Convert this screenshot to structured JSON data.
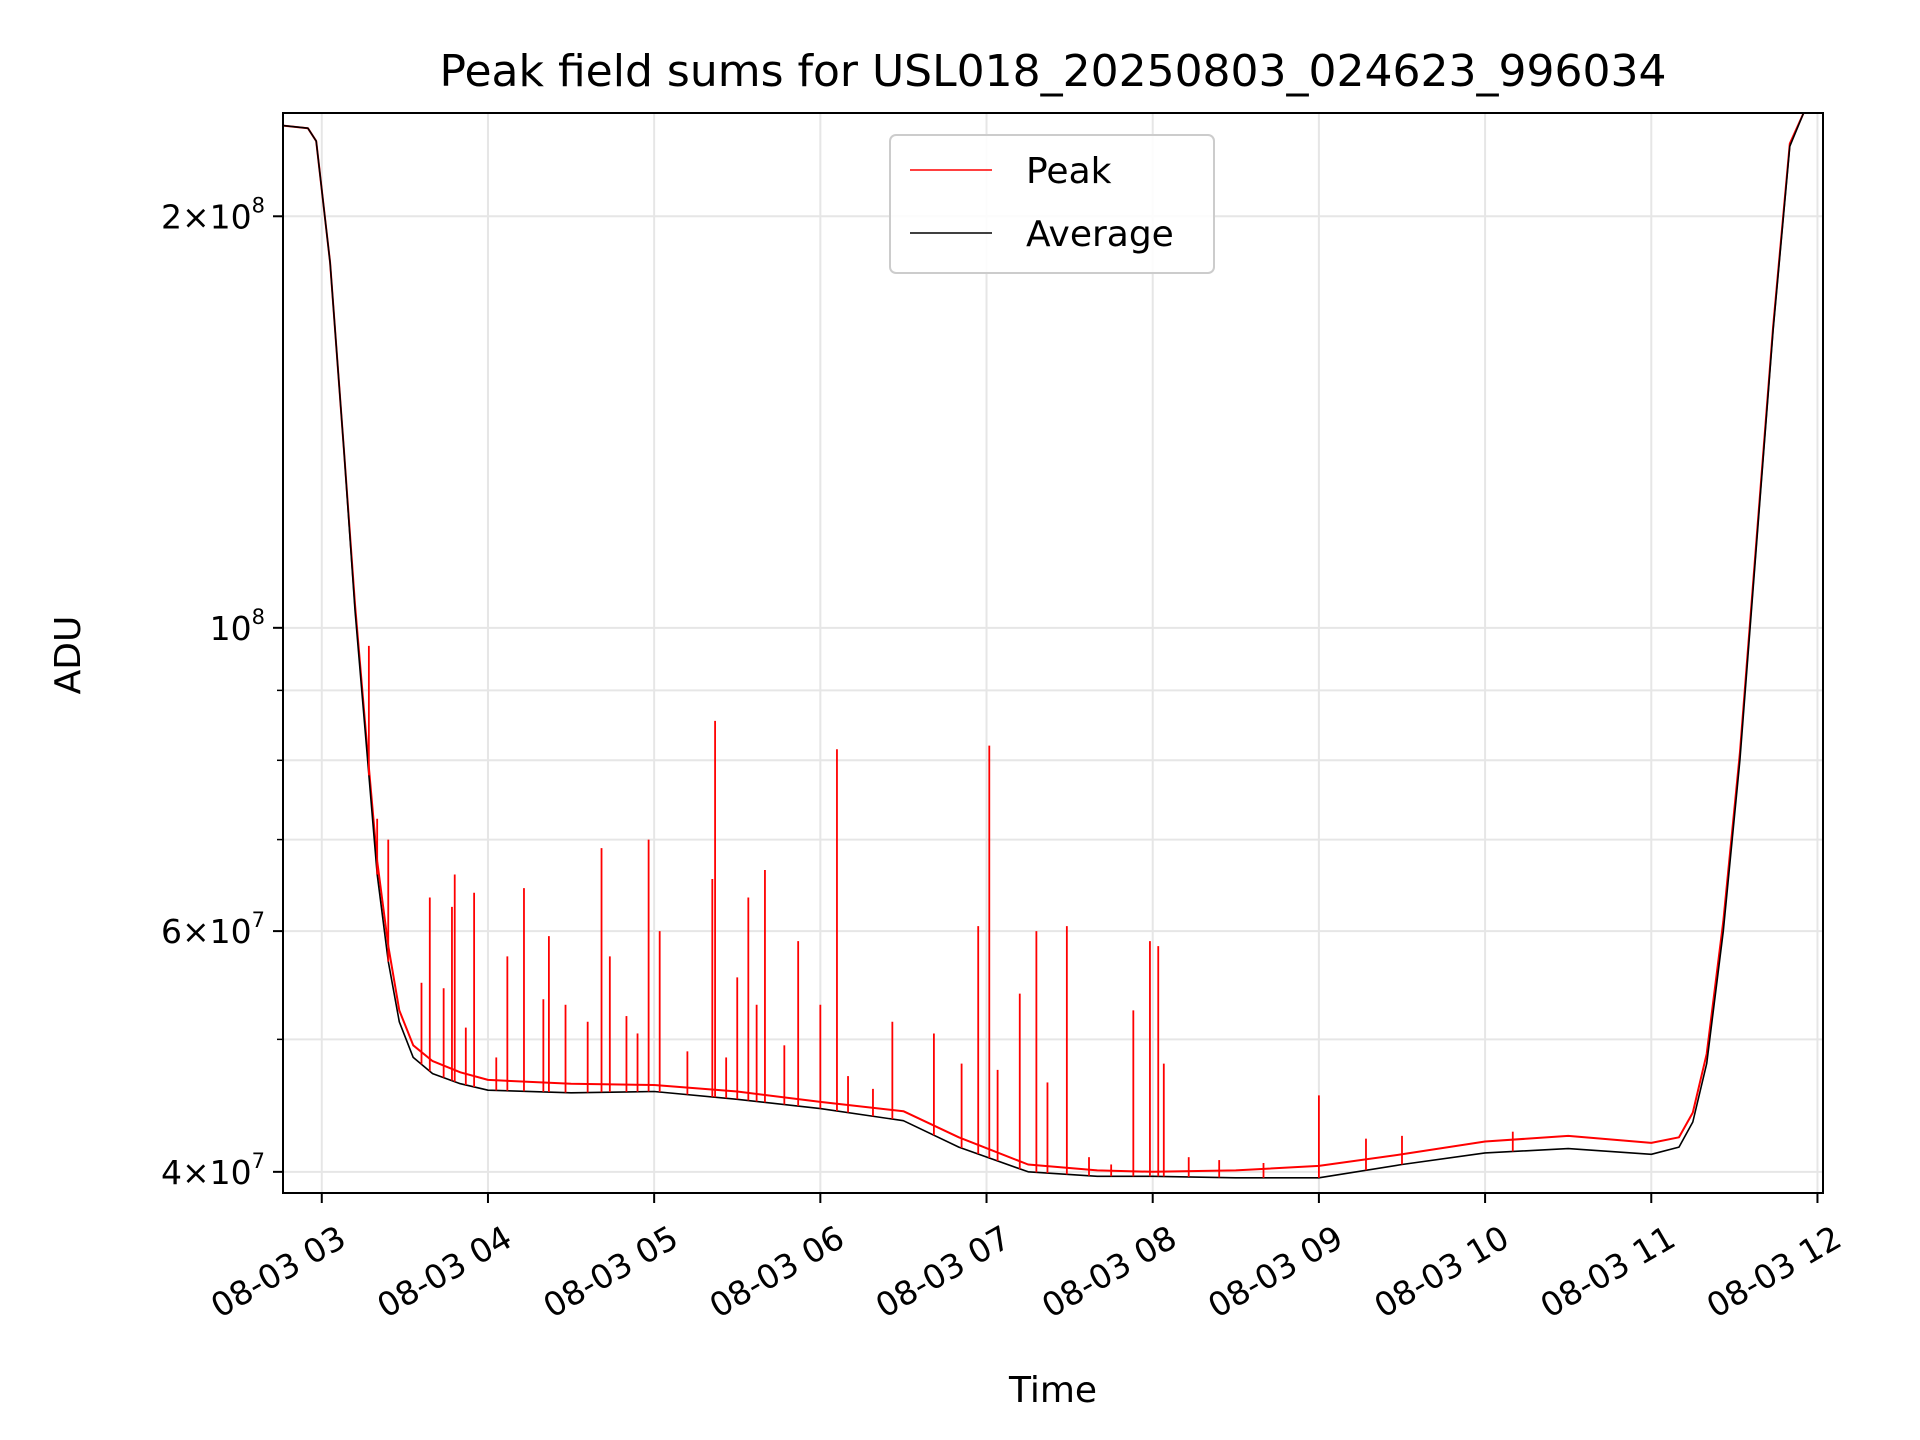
{
  "chart_data": {
    "type": "line",
    "title": "Peak field sums for USL018_20250803_024623_996034",
    "xlabel": "Time",
    "ylabel": "ADU",
    "y_scale": "log",
    "ylim": [
      38600000,
      238000000
    ],
    "xlim": [
      "2025-08-03 02:46",
      "2025-08-03 12:02"
    ],
    "grid": true,
    "legend_position": "top-center",
    "colors": {
      "Peak": "#ff0000",
      "Average": "#000000"
    },
    "x_ticks": [
      {
        "time": "2025-08-03 03:00",
        "label": "08-03 03"
      },
      {
        "time": "2025-08-03 04:00",
        "label": "08-03 04"
      },
      {
        "time": "2025-08-03 05:00",
        "label": "08-03 05"
      },
      {
        "time": "2025-08-03 06:00",
        "label": "08-03 06"
      },
      {
        "time": "2025-08-03 07:00",
        "label": "08-03 07"
      },
      {
        "time": "2025-08-03 08:00",
        "label": "08-03 08"
      },
      {
        "time": "2025-08-03 09:00",
        "label": "08-03 09"
      },
      {
        "time": "2025-08-03 10:00",
        "label": "08-03 10"
      },
      {
        "time": "2025-08-03 11:00",
        "label": "08-03 11"
      },
      {
        "time": "2025-08-03 12:00",
        "label": "08-03 12"
      }
    ],
    "y_ticks": [
      {
        "value": 40000000,
        "mantissa": "4",
        "exp": "7"
      },
      {
        "value": 60000000,
        "mantissa": "6",
        "exp": "7"
      },
      {
        "value": 100000000,
        "mantissa": "",
        "exp": "8"
      },
      {
        "value": 200000000,
        "mantissa": "2",
        "exp": "8"
      }
    ],
    "y_minor_ticks": [
      50000000,
      70000000,
      80000000,
      90000000
    ],
    "series": [
      {
        "name": "Average",
        "points": [
          [
            "2025-08-03 02:46",
            233000000
          ],
          [
            "2025-08-03 02:55",
            232000000
          ],
          [
            "2025-08-03 02:58",
            227000000
          ],
          [
            "2025-08-03 03:03",
            185000000
          ],
          [
            "2025-08-03 03:08",
            135000000
          ],
          [
            "2025-08-03 03:12",
            103000000
          ],
          [
            "2025-08-03 03:17",
            78000000
          ],
          [
            "2025-08-03 03:20",
            66000000
          ],
          [
            "2025-08-03 03:24",
            57000000
          ],
          [
            "2025-08-03 03:28",
            51500000
          ],
          [
            "2025-08-03 03:33",
            48500000
          ],
          [
            "2025-08-03 03:40",
            47200000
          ],
          [
            "2025-08-03 03:50",
            46400000
          ],
          [
            "2025-08-03 04:00",
            45900000
          ],
          [
            "2025-08-03 04:30",
            45700000
          ],
          [
            "2025-08-03 05:00",
            45800000
          ],
          [
            "2025-08-03 05:30",
            45200000
          ],
          [
            "2025-08-03 06:00",
            44500000
          ],
          [
            "2025-08-03 06:30",
            43600000
          ],
          [
            "2025-08-03 06:50",
            41700000
          ],
          [
            "2025-08-03 07:15",
            40000000
          ],
          [
            "2025-08-03 07:40",
            39700000
          ],
          [
            "2025-08-03 08:00",
            39700000
          ],
          [
            "2025-08-03 08:30",
            39600000
          ],
          [
            "2025-08-03 09:00",
            39600000
          ],
          [
            "2025-08-03 09:30",
            40500000
          ],
          [
            "2025-08-03 10:00",
            41300000
          ],
          [
            "2025-08-03 10:30",
            41600000
          ],
          [
            "2025-08-03 11:00",
            41200000
          ],
          [
            "2025-08-03 11:10",
            41700000
          ],
          [
            "2025-08-03 11:15",
            43500000
          ],
          [
            "2025-08-03 11:20",
            48000000
          ],
          [
            "2025-08-03 11:26",
            60000000
          ],
          [
            "2025-08-03 11:32",
            80000000
          ],
          [
            "2025-08-03 11:38",
            115000000
          ],
          [
            "2025-08-03 11:44",
            165000000
          ],
          [
            "2025-08-03 11:50",
            225000000
          ],
          [
            "2025-08-03 11:55",
            238000000
          ]
        ]
      },
      {
        "name": "Peak",
        "points": [
          [
            "2025-08-03 02:46",
            233000000
          ],
          [
            "2025-08-03 02:55",
            232000000
          ],
          [
            "2025-08-03 02:58",
            227000000
          ],
          [
            "2025-08-03 03:03",
            185000000
          ],
          [
            "2025-08-03 03:08",
            135000000
          ],
          [
            "2025-08-03 03:12",
            104000000
          ],
          [
            "2025-08-03 03:17",
            79000000
          ],
          [
            "2025-08-03 03:20",
            67500000
          ],
          [
            "2025-08-03 03:24",
            58500000
          ],
          [
            "2025-08-03 03:28",
            52500000
          ],
          [
            "2025-08-03 03:33",
            49500000
          ],
          [
            "2025-08-03 03:40",
            48200000
          ],
          [
            "2025-08-03 03:50",
            47300000
          ],
          [
            "2025-08-03 04:00",
            46700000
          ],
          [
            "2025-08-03 04:30",
            46400000
          ],
          [
            "2025-08-03 05:00",
            46300000
          ],
          [
            "2025-08-03 05:30",
            45800000
          ],
          [
            "2025-08-03 06:00",
            45000000
          ],
          [
            "2025-08-03 06:30",
            44300000
          ],
          [
            "2025-08-03 06:50",
            42400000
          ],
          [
            "2025-08-03 07:15",
            40500000
          ],
          [
            "2025-08-03 07:40",
            40100000
          ],
          [
            "2025-08-03 08:00",
            40000000
          ],
          [
            "2025-08-03 08:30",
            40100000
          ],
          [
            "2025-08-03 09:00",
            40400000
          ],
          [
            "2025-08-03 09:30",
            41200000
          ],
          [
            "2025-08-03 10:00",
            42100000
          ],
          [
            "2025-08-03 10:30",
            42500000
          ],
          [
            "2025-08-03 11:00",
            42000000
          ],
          [
            "2025-08-03 11:10",
            42400000
          ],
          [
            "2025-08-03 11:15",
            44200000
          ],
          [
            "2025-08-03 11:20",
            48800000
          ],
          [
            "2025-08-03 11:26",
            61000000
          ],
          [
            "2025-08-03 11:32",
            81000000
          ],
          [
            "2025-08-03 11:38",
            116000000
          ],
          [
            "2025-08-03 11:44",
            166000000
          ],
          [
            "2025-08-03 11:50",
            226000000
          ],
          [
            "2025-08-03 11:55",
            238000000
          ]
        ]
      }
    ],
    "peak_spikes": [
      [
        "2025-08-03 03:17",
        97000000
      ],
      [
        "2025-08-03 03:20",
        72500000
      ],
      [
        "2025-08-03 03:24",
        70000000
      ],
      [
        "2025-08-03 03:36",
        55000000
      ],
      [
        "2025-08-03 03:39",
        63500000
      ],
      [
        "2025-08-03 03:44",
        54500000
      ],
      [
        "2025-08-03 03:47",
        62500000
      ],
      [
        "2025-08-03 03:48",
        66000000
      ],
      [
        "2025-08-03 03:52",
        51000000
      ],
      [
        "2025-08-03 03:55",
        64000000
      ],
      [
        "2025-08-03 04:03",
        48500000
      ],
      [
        "2025-08-03 04:07",
        57500000
      ],
      [
        "2025-08-03 04:13",
        64500000
      ],
      [
        "2025-08-03 04:20",
        53500000
      ],
      [
        "2025-08-03 04:22",
        59500000
      ],
      [
        "2025-08-03 04:28",
        53000000
      ],
      [
        "2025-08-03 04:36",
        51500000
      ],
      [
        "2025-08-03 04:41",
        69000000
      ],
      [
        "2025-08-03 04:44",
        57500000
      ],
      [
        "2025-08-03 04:50",
        52000000
      ],
      [
        "2025-08-03 04:54",
        50500000
      ],
      [
        "2025-08-03 04:58",
        70000000
      ],
      [
        "2025-08-03 05:02",
        60000000
      ],
      [
        "2025-08-03 05:12",
        49000000
      ],
      [
        "2025-08-03 05:21",
        65500000
      ],
      [
        "2025-08-03 05:22",
        85500000
      ],
      [
        "2025-08-03 05:26",
        48500000
      ],
      [
        "2025-08-03 05:30",
        55500000
      ],
      [
        "2025-08-03 05:34",
        63500000
      ],
      [
        "2025-08-03 05:37",
        53000000
      ],
      [
        "2025-08-03 05:40",
        66500000
      ],
      [
        "2025-08-03 05:47",
        49500000
      ],
      [
        "2025-08-03 05:52",
        59000000
      ],
      [
        "2025-08-03 06:00",
        53000000
      ],
      [
        "2025-08-03 06:06",
        81500000
      ],
      [
        "2025-08-03 06:10",
        47000000
      ],
      [
        "2025-08-03 06:19",
        46000000
      ],
      [
        "2025-08-03 06:26",
        51500000
      ],
      [
        "2025-08-03 06:41",
        50500000
      ],
      [
        "2025-08-03 06:51",
        48000000
      ],
      [
        "2025-08-03 06:57",
        60500000
      ],
      [
        "2025-08-03 07:01",
        82000000
      ],
      [
        "2025-08-03 07:04",
        47500000
      ],
      [
        "2025-08-03 07:12",
        54000000
      ],
      [
        "2025-08-03 07:18",
        60000000
      ],
      [
        "2025-08-03 07:22",
        46500000
      ],
      [
        "2025-08-03 07:29",
        60500000
      ],
      [
        "2025-08-03 07:37",
        41000000
      ],
      [
        "2025-08-03 07:45",
        40500000
      ],
      [
        "2025-08-03 07:53",
        52500000
      ],
      [
        "2025-08-03 07:59",
        59000000
      ],
      [
        "2025-08-03 08:02",
        58500000
      ],
      [
        "2025-08-03 08:04",
        48000000
      ],
      [
        "2025-08-03 08:13",
        41000000
      ],
      [
        "2025-08-03 08:24",
        40800000
      ],
      [
        "2025-08-03 08:40",
        40600000
      ],
      [
        "2025-08-03 09:00",
        45500000
      ],
      [
        "2025-08-03 09:17",
        42300000
      ],
      [
        "2025-08-03 09:30",
        42500000
      ],
      [
        "2025-08-03 10:10",
        42800000
      ]
    ]
  }
}
